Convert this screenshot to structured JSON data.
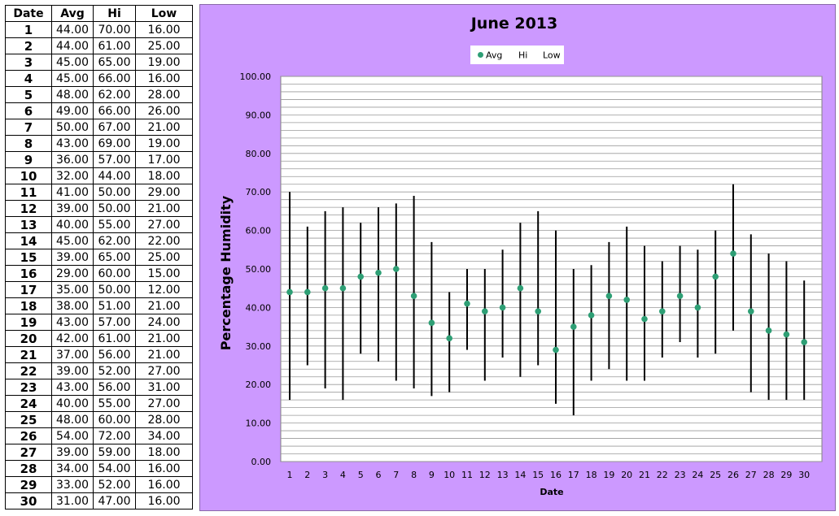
{
  "table": {
    "headers": [
      "Date",
      "Avg",
      "Hi",
      "Low"
    ],
    "rows": [
      [
        "1",
        "44.00",
        "70.00",
        "16.00"
      ],
      [
        "2",
        "44.00",
        "61.00",
        "25.00"
      ],
      [
        "3",
        "45.00",
        "65.00",
        "19.00"
      ],
      [
        "4",
        "45.00",
        "66.00",
        "16.00"
      ],
      [
        "5",
        "48.00",
        "62.00",
        "28.00"
      ],
      [
        "6",
        "49.00",
        "66.00",
        "26.00"
      ],
      [
        "7",
        "50.00",
        "67.00",
        "21.00"
      ],
      [
        "8",
        "43.00",
        "69.00",
        "19.00"
      ],
      [
        "9",
        "36.00",
        "57.00",
        "17.00"
      ],
      [
        "10",
        "32.00",
        "44.00",
        "18.00"
      ],
      [
        "11",
        "41.00",
        "50.00",
        "29.00"
      ],
      [
        "12",
        "39.00",
        "50.00",
        "21.00"
      ],
      [
        "13",
        "40.00",
        "55.00",
        "27.00"
      ],
      [
        "14",
        "45.00",
        "62.00",
        "22.00"
      ],
      [
        "15",
        "39.00",
        "65.00",
        "25.00"
      ],
      [
        "16",
        "29.00",
        "60.00",
        "15.00"
      ],
      [
        "17",
        "35.00",
        "50.00",
        "12.00"
      ],
      [
        "18",
        "38.00",
        "51.00",
        "21.00"
      ],
      [
        "19",
        "43.00",
        "57.00",
        "24.00"
      ],
      [
        "20",
        "42.00",
        "61.00",
        "21.00"
      ],
      [
        "21",
        "37.00",
        "56.00",
        "21.00"
      ],
      [
        "22",
        "39.00",
        "52.00",
        "27.00"
      ],
      [
        "23",
        "43.00",
        "56.00",
        "31.00"
      ],
      [
        "24",
        "40.00",
        "55.00",
        "27.00"
      ],
      [
        "25",
        "48.00",
        "60.00",
        "28.00"
      ],
      [
        "26",
        "54.00",
        "72.00",
        "34.00"
      ],
      [
        "27",
        "39.00",
        "59.00",
        "18.00"
      ],
      [
        "28",
        "34.00",
        "54.00",
        "16.00"
      ],
      [
        "29",
        "33.00",
        "52.00",
        "16.00"
      ],
      [
        "30",
        "31.00",
        "47.00",
        "16.00"
      ]
    ]
  },
  "chart_data": {
    "type": "scatter",
    "title": "June 2013",
    "xlabel": "Date",
    "ylabel": "Percentage Humidity",
    "categories": [
      "1",
      "2",
      "3",
      "4",
      "5",
      "6",
      "7",
      "8",
      "9",
      "10",
      "11",
      "12",
      "13",
      "14",
      "15",
      "16",
      "17",
      "18",
      "19",
      "20",
      "21",
      "22",
      "23",
      "24",
      "25",
      "26",
      "27",
      "28",
      "29",
      "30"
    ],
    "series": [
      {
        "name": "Avg",
        "values": [
          44,
          44,
          45,
          45,
          48,
          49,
          50,
          43,
          36,
          32,
          41,
          39,
          40,
          45,
          39,
          29,
          35,
          38,
          43,
          42,
          37,
          39,
          43,
          40,
          48,
          54,
          39,
          34,
          33,
          31
        ]
      },
      {
        "name": "Hi",
        "values": [
          70,
          61,
          65,
          66,
          62,
          66,
          67,
          69,
          57,
          44,
          50,
          50,
          55,
          62,
          65,
          60,
          50,
          51,
          57,
          61,
          56,
          52,
          56,
          55,
          60,
          72,
          59,
          54,
          52,
          47
        ]
      },
      {
        "name": "Low",
        "values": [
          16,
          25,
          19,
          16,
          28,
          26,
          21,
          19,
          17,
          18,
          29,
          21,
          27,
          22,
          25,
          15,
          12,
          21,
          24,
          21,
          21,
          27,
          31,
          27,
          28,
          34,
          18,
          16,
          16,
          16
        ]
      }
    ],
    "ylim": [
      0,
      100
    ],
    "yticks": [
      "0.00",
      "10.00",
      "20.00",
      "30.00",
      "40.00",
      "50.00",
      "60.00",
      "70.00",
      "80.00",
      "90.00",
      "100.00"
    ],
    "legend_position": "top-center",
    "grid": true,
    "colors": {
      "avg_marker": "#2e9f75",
      "range_line": "#000000",
      "panel_background": "#cc99ff",
      "plot_background": "#ffffff",
      "gridline": "#9a9a9a"
    }
  }
}
